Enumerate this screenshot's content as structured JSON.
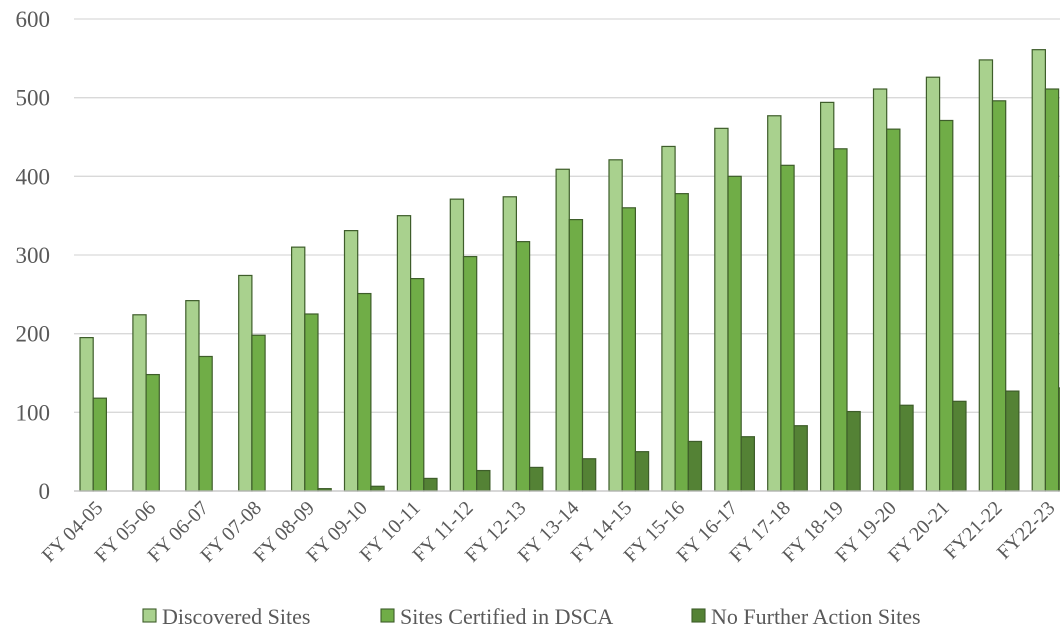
{
  "chart_data": {
    "type": "bar",
    "title": "",
    "xlabel": "",
    "ylabel": "",
    "ylim": [
      0,
      600
    ],
    "yticks": [
      0,
      100,
      200,
      300,
      400,
      500,
      600
    ],
    "grid": true,
    "legend_position": "bottom",
    "categories": [
      "FY 04-05",
      "FY 05-06",
      "FY 06-07",
      "FY 07-08",
      "FY 08-09",
      "FY 09-10",
      "FY 10-11",
      "FY 11-12",
      "FY 12-13",
      "FY 13-14",
      "FY 14-15",
      "FY 15-16",
      "FY 16-17",
      "FY 17-18",
      "FY 18-19",
      "FY 19-20",
      "FY 20-21",
      "FY21-22",
      "FY22-23"
    ],
    "series": [
      {
        "name": "Discovered Sites",
        "color": "#a9d18e",
        "values": [
          195,
          224,
          242,
          274,
          310,
          331,
          350,
          371,
          374,
          409,
          421,
          438,
          461,
          477,
          494,
          511,
          526,
          548,
          561
        ]
      },
      {
        "name": "Sites Certified in DSCA",
        "color": "#70ad47",
        "values": [
          118,
          148,
          171,
          198,
          225,
          251,
          270,
          298,
          317,
          345,
          360,
          378,
          400,
          414,
          435,
          460,
          471,
          496,
          511
        ]
      },
      {
        "name": "No Further Action Sites",
        "color": "#548235",
        "values": [
          0,
          0,
          0,
          0,
          3,
          6,
          16,
          26,
          30,
          41,
          50,
          63,
          69,
          83,
          101,
          109,
          114,
          127,
          131
        ]
      }
    ]
  }
}
